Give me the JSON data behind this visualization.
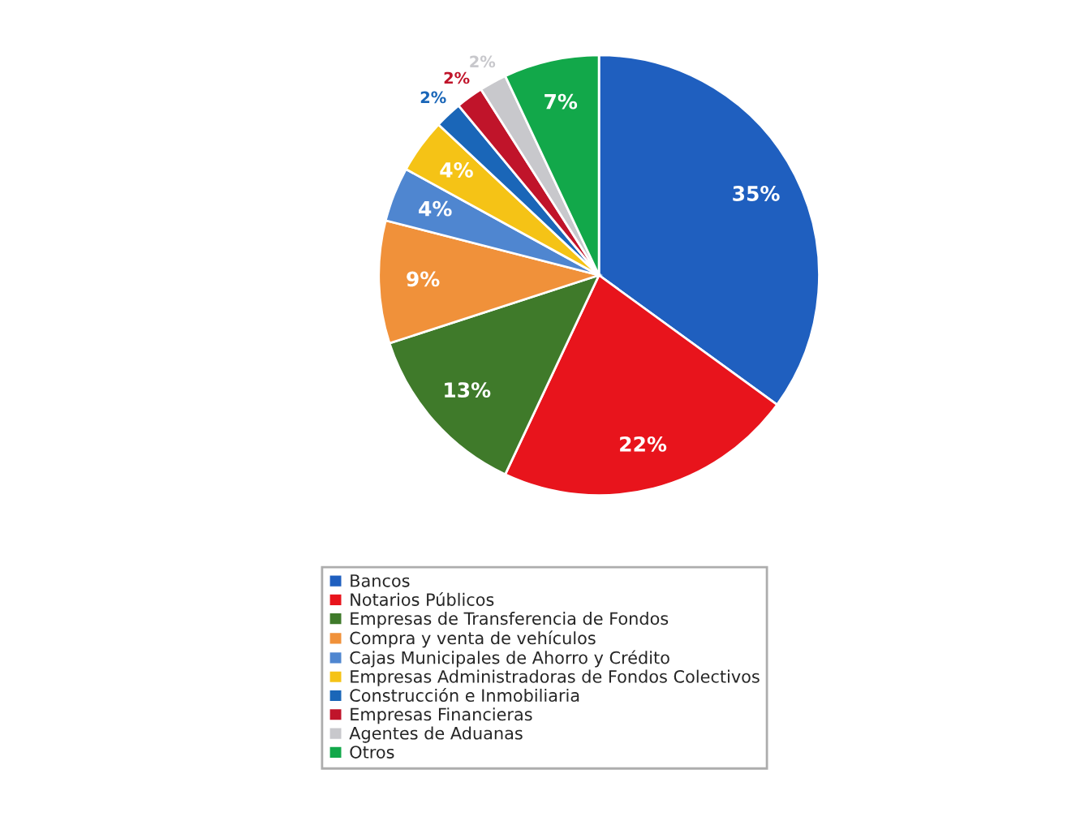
{
  "chart_data": {
    "type": "pie",
    "categories": [
      "Bancos",
      "Notarios Públicos",
      "Empresas de Transferencia de Fondos",
      "Compra y venta de vehículos",
      "Cajas Municipales de Ahorro y Crédito",
      "Empresas Administradoras de Fondos Colectivos",
      "Construcción e Inmobiliaria",
      "Empresas Financieras",
      "Agentes de Aduanas",
      "Otros"
    ],
    "values": [
      35,
      22,
      13,
      9,
      4,
      4,
      2,
      2,
      2,
      7
    ],
    "colors": [
      "#1f5fbf",
      "#e8141c",
      "#3f7a2a",
      "#f0913a",
      "#4f86d0",
      "#f5c316",
      "#1a66b8",
      "#c0142a",
      "#c8c8cc",
      "#12a84a"
    ],
    "value_labels": [
      "35%",
      "22%",
      "13%",
      "9%",
      "4%",
      "4%",
      "2%",
      "2%",
      "2%",
      "7%"
    ],
    "legend": "bottom"
  }
}
